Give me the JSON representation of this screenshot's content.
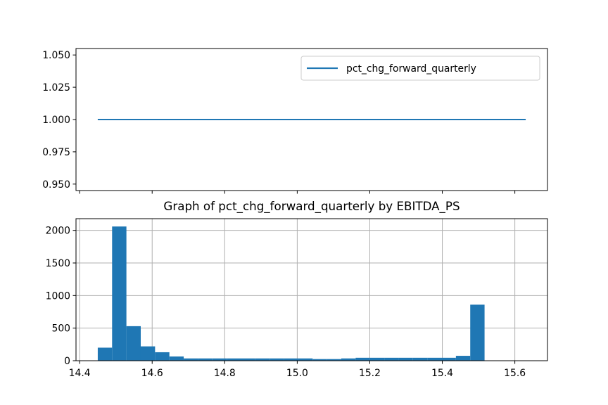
{
  "chart_data": [
    {
      "type": "line",
      "title": "",
      "xlabel": "",
      "ylabel": "",
      "xlim": [
        14.39,
        15.69
      ],
      "ylim": [
        0.945,
        1.055
      ],
      "x_ticks_shown": false,
      "y_ticks": [
        "0.950",
        "0.975",
        "1.000",
        "1.025",
        "1.050"
      ],
      "y_tick_values": [
        0.95,
        0.975,
        1.0,
        1.025,
        1.05
      ],
      "grid": false,
      "legend_position": "upper right",
      "series": [
        {
          "name": "pct_chg_forward_quarterly",
          "color": "#1f77b4",
          "x": [
            14.45,
            15.63
          ],
          "y": [
            1.0,
            1.0
          ]
        }
      ]
    },
    {
      "type": "bar",
      "subtype": "histogram",
      "title": "Graph of pct_chg_forward_quarterly by EBITDA_PS",
      "xlabel": "",
      "ylabel": "",
      "xlim": [
        14.39,
        15.69
      ],
      "ylim": [
        0,
        2180
      ],
      "x_ticks": [
        "14.4",
        "14.6",
        "14.8",
        "15.0",
        "15.2",
        "15.4",
        "15.6"
      ],
      "x_tick_values": [
        14.4,
        14.6,
        14.8,
        15.0,
        15.2,
        15.4,
        15.6
      ],
      "y_ticks": [
        "0",
        "500",
        "1000",
        "1500",
        "2000"
      ],
      "y_tick_values": [
        0,
        500,
        1000,
        1500,
        2000
      ],
      "grid": true,
      "color": "#1f77b4",
      "bin_start": 14.45,
      "bin_width": 0.0395,
      "values": [
        200,
        2060,
        530,
        220,
        130,
        65,
        35,
        35,
        35,
        35,
        35,
        35,
        35,
        35,
        35,
        25,
        25,
        35,
        45,
        45,
        45,
        45,
        45,
        45,
        45,
        75,
        860
      ]
    }
  ]
}
